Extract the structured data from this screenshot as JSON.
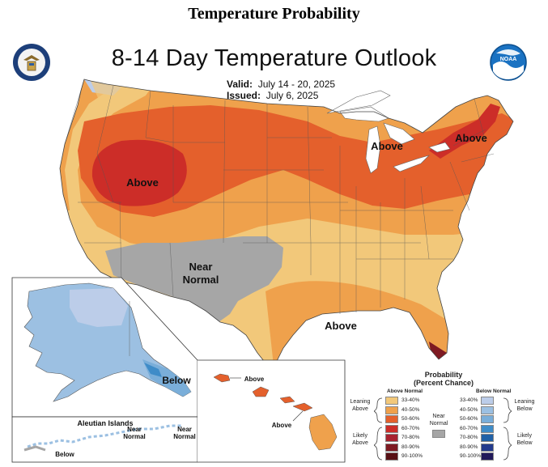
{
  "page": {
    "header": "Temperature Probability"
  },
  "map": {
    "title": "8-14 Day Temperature Outlook",
    "valid_label": "Valid:",
    "valid_dates": "July 14 - 20, 2025",
    "issued_label": "Issued:",
    "issued_date": "July 6, 2025"
  },
  "region_labels": {
    "west_above": "Above",
    "great_lakes_above": "Above",
    "northeast_above": "Above",
    "southwest_near": "Near",
    "southwest_normal": "Normal",
    "gulf_above": "Above",
    "alaska_below": "Below",
    "aleutian_title": "Aleutian Islands",
    "aleutian_near1_a": "Near",
    "aleutian_near1_b": "Normal",
    "aleutian_near2_a": "Near",
    "aleutian_near2_b": "Normal",
    "aleutian_below": "Below",
    "hawaii_above1": "Above",
    "hawaii_above2": "Above"
  },
  "legend": {
    "title_line1": "Probability",
    "title_line2": "(Percent Chance)",
    "above_head": "Above Normal",
    "below_head": "Below Normal",
    "near_label_a": "Near",
    "near_label_b": "Normal",
    "leaning_above_a": "Leaning",
    "leaning_above_b": "Above",
    "likely_above_a": "Likely",
    "likely_above_b": "Above",
    "leaning_below_a": "Leaning",
    "leaning_below_b": "Below",
    "likely_below_a": "Likely",
    "likely_below_b": "Below",
    "above_bins": [
      "33-40%",
      "40-50%",
      "50-60%",
      "60-70%",
      "70-80%",
      "80-90%",
      "90-100%"
    ],
    "below_bins": [
      "33-40%",
      "40-50%",
      "50-60%",
      "60-70%",
      "70-80%",
      "80-90%",
      "90-100%"
    ],
    "above_colors": [
      "#f2c87a",
      "#efa14c",
      "#e4602c",
      "#cc2d28",
      "#a82230",
      "#7e1a22",
      "#571014"
    ],
    "below_colors": [
      "#bccde9",
      "#9cc0e2",
      "#7aaed9",
      "#3f8cc8",
      "#2161a7",
      "#233b8d",
      "#21195a"
    ],
    "near_color": "#a6a6a6"
  }
}
